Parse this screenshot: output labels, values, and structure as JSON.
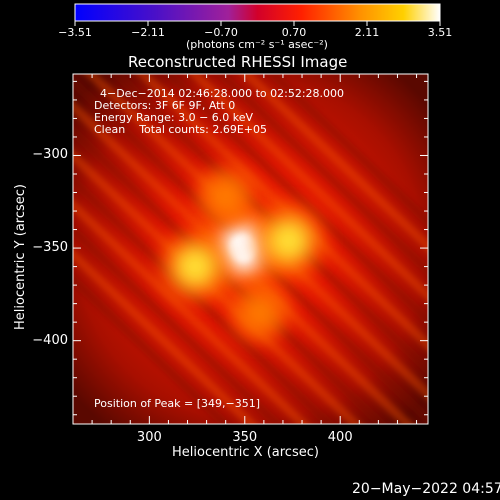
{
  "chart_data": {
    "type": "heatmap",
    "title": "Reconstructed RHESSI Image",
    "xlabel": "Heliocentric X (arcsec)",
    "ylabel": "Heliocentric Y (arcsec)",
    "x_ticks": [
      300,
      350,
      400
    ],
    "y_ticks": [
      -300,
      -350,
      -400
    ],
    "xlim": [
      260,
      446
    ],
    "ylim": [
      -445,
      -256
    ],
    "colorbar": {
      "ticks": [
        "−3.51",
        "−2.11",
        "−0.70",
        "0.70",
        "2.11",
        "3.51"
      ],
      "range": [
        -3.51,
        3.51
      ],
      "unit_label": "(photons cm⁻² s⁻¹ asec⁻²)"
    },
    "annotations": [
      "4−Dec−2014 02:46:28.000 to 02:52:28.000",
      "Detectors: 3F 6F 9F, Att 0",
      "Energy Range: 3.0 − 6.0 keV",
      "Clean    Total counts: 2.69E+05"
    ],
    "peak_label": "Position of Peak = [349,−351]",
    "peak": [
      349,
      -351
    ],
    "sources": [
      {
        "x": 349,
        "y": -350,
        "value": 3.51
      },
      {
        "x": 373,
        "y": -346,
        "value": 2.9
      },
      {
        "x": 324,
        "y": -360,
        "value": 2.8
      },
      {
        "x": 340,
        "y": -322,
        "value": 1.9
      },
      {
        "x": 358,
        "y": -385,
        "value": 1.8
      }
    ]
  },
  "footer": {
    "timestamp": "20−May−2022 04:57"
  }
}
